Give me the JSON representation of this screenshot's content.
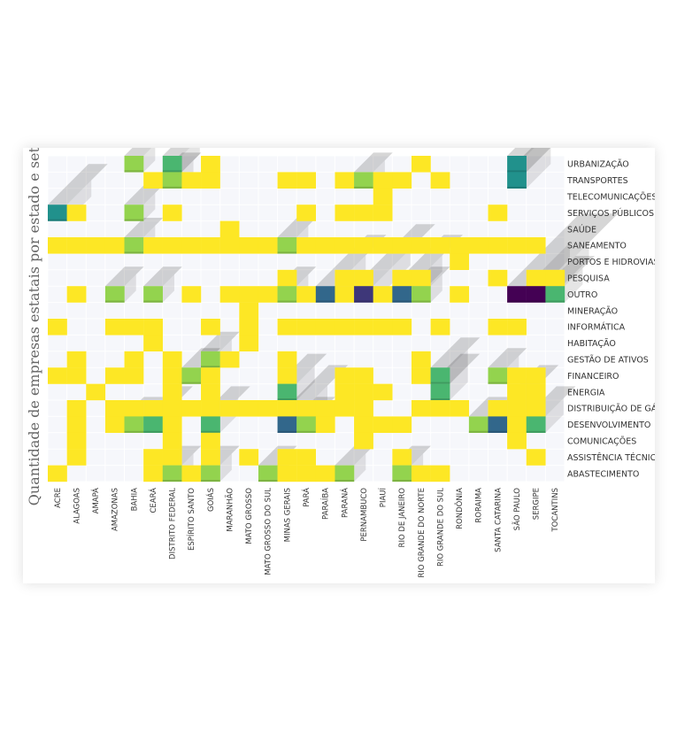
{
  "chart_data": {
    "type": "heatmap",
    "title": "",
    "ylabel": "Quantidade de empresas estatais por estado e setor",
    "xlabel": "",
    "rows": [
      "URBANIZAÇÃO",
      "TRANSPORTES",
      "TELECOMUNICAÇÕES",
      "SERVIÇOS PÚBLICOS",
      "SAÚDE",
      "SANEAMENTO",
      "PORTOS E HIDROVIAS",
      "PESQUISA",
      "OUTRO",
      "MINERAÇÃO",
      "INFORMÁTICA",
      "HABITAÇÃO",
      "GESTÃO DE ATIVOS",
      "FINANCEIRO",
      "ENERGIA",
      "DISTRIBUIÇÃO DE GÁS",
      "DESENVOLVIMENTO",
      "COMUNICAÇÕES",
      "ASSISTÊNCIA TÉCNICA",
      "ABASTECIMENTO"
    ],
    "columns": [
      "ACRE",
      "ALAGOAS",
      "AMAPÁ",
      "AMAZONAS",
      "BAHIA",
      "CEARÁ",
      "DISTRITO FEDERAL",
      "ESPÍRITO SANTO",
      "GOIÁS",
      "MARANHÃO",
      "MATO GROSSO",
      "MATO GROSSO DO SUL",
      "MINAS GERAIS",
      "PARÁ",
      "PARAÍBA",
      "PARANÁ",
      "PERNAMBUCO",
      "PIAUÍ",
      "RIO DE JANEIRO",
      "RIO GRANDE DO NORTE",
      "RIO GRANDE DO SUL",
      "RONDÔNIA",
      "RORAIMA",
      "SANTA CATARINA",
      "SÃO PAULO",
      "SERGIPE",
      "TOCANTINS"
    ],
    "colorscale": [
      "#440154",
      "#3b528b",
      "#21918c",
      "#5ec962",
      "#fde725"
    ],
    "grid": true,
    "cells": [
      [
        0,
        4,
        2
      ],
      [
        0,
        6,
        3
      ],
      [
        0,
        8,
        1
      ],
      [
        0,
        19,
        1
      ],
      [
        0,
        24,
        4
      ],
      [
        1,
        5,
        1
      ],
      [
        1,
        6,
        2
      ],
      [
        1,
        7,
        1
      ],
      [
        1,
        8,
        1
      ],
      [
        1,
        12,
        1
      ],
      [
        1,
        13,
        1
      ],
      [
        1,
        15,
        1
      ],
      [
        1,
        16,
        2
      ],
      [
        1,
        17,
        1
      ],
      [
        1,
        18,
        1
      ],
      [
        1,
        20,
        1
      ],
      [
        1,
        24,
        4
      ],
      [
        2,
        17,
        1
      ],
      [
        3,
        0,
        4
      ],
      [
        3,
        1,
        1
      ],
      [
        3,
        4,
        2
      ],
      [
        3,
        6,
        1
      ],
      [
        3,
        13,
        1
      ],
      [
        3,
        15,
        1
      ],
      [
        3,
        16,
        1
      ],
      [
        3,
        17,
        1
      ],
      [
        3,
        23,
        1
      ],
      [
        4,
        9,
        1
      ],
      [
        5,
        0,
        1
      ],
      [
        5,
        1,
        1
      ],
      [
        5,
        2,
        1
      ],
      [
        5,
        3,
        1
      ],
      [
        5,
        4,
        2
      ],
      [
        5,
        5,
        1
      ],
      [
        5,
        6,
        1
      ],
      [
        5,
        7,
        1
      ],
      [
        5,
        8,
        1
      ],
      [
        5,
        9,
        1
      ],
      [
        5,
        10,
        1
      ],
      [
        5,
        11,
        1
      ],
      [
        5,
        12,
        2
      ],
      [
        5,
        13,
        1
      ],
      [
        5,
        14,
        1
      ],
      [
        5,
        15,
        1
      ],
      [
        5,
        16,
        1
      ],
      [
        5,
        17,
        1
      ],
      [
        5,
        18,
        1
      ],
      [
        5,
        19,
        1
      ],
      [
        5,
        20,
        1
      ],
      [
        5,
        21,
        1
      ],
      [
        5,
        22,
        1
      ],
      [
        5,
        23,
        1
      ],
      [
        5,
        24,
        1
      ],
      [
        5,
        25,
        1
      ],
      [
        6,
        21,
        1
      ],
      [
        7,
        12,
        1
      ],
      [
        7,
        15,
        1
      ],
      [
        7,
        16,
        1
      ],
      [
        7,
        18,
        1
      ],
      [
        7,
        19,
        1
      ],
      [
        7,
        23,
        1
      ],
      [
        7,
        25,
        1
      ],
      [
        7,
        26,
        1
      ],
      [
        8,
        1,
        1
      ],
      [
        8,
        3,
        2
      ],
      [
        8,
        5,
        2
      ],
      [
        8,
        7,
        1
      ],
      [
        8,
        9,
        1
      ],
      [
        8,
        10,
        1
      ],
      [
        8,
        11,
        1
      ],
      [
        8,
        12,
        2
      ],
      [
        8,
        13,
        1
      ],
      [
        8,
        14,
        5
      ],
      [
        8,
        15,
        1
      ],
      [
        8,
        16,
        6
      ],
      [
        8,
        17,
        1
      ],
      [
        8,
        18,
        5
      ],
      [
        8,
        19,
        2
      ],
      [
        8,
        21,
        1
      ],
      [
        8,
        24,
        7
      ],
      [
        8,
        25,
        7
      ],
      [
        8,
        26,
        3
      ],
      [
        9,
        10,
        1
      ],
      [
        10,
        0,
        1
      ],
      [
        10,
        3,
        1
      ],
      [
        10,
        4,
        1
      ],
      [
        10,
        5,
        1
      ],
      [
        10,
        8,
        1
      ],
      [
        10,
        10,
        1
      ],
      [
        10,
        12,
        1
      ],
      [
        10,
        13,
        1
      ],
      [
        10,
        14,
        1
      ],
      [
        10,
        15,
        1
      ],
      [
        10,
        16,
        1
      ],
      [
        10,
        17,
        1
      ],
      [
        10,
        18,
        1
      ],
      [
        10,
        20,
        1
      ],
      [
        10,
        23,
        1
      ],
      [
        10,
        24,
        1
      ],
      [
        11,
        5,
        1
      ],
      [
        11,
        10,
        1
      ],
      [
        12,
        1,
        1
      ],
      [
        12,
        4,
        1
      ],
      [
        12,
        6,
        1
      ],
      [
        12,
        8,
        2
      ],
      [
        12,
        9,
        1
      ],
      [
        12,
        12,
        1
      ],
      [
        12,
        19,
        1
      ],
      [
        13,
        0,
        1
      ],
      [
        13,
        1,
        1
      ],
      [
        13,
        3,
        1
      ],
      [
        13,
        4,
        1
      ],
      [
        13,
        6,
        1
      ],
      [
        13,
        7,
        2
      ],
      [
        13,
        8,
        1
      ],
      [
        13,
        12,
        1
      ],
      [
        13,
        15,
        1
      ],
      [
        13,
        16,
        1
      ],
      [
        13,
        19,
        1
      ],
      [
        13,
        20,
        3
      ],
      [
        13,
        23,
        2
      ],
      [
        13,
        24,
        1
      ],
      [
        13,
        25,
        1
      ],
      [
        14,
        2,
        1
      ],
      [
        14,
        6,
        1
      ],
      [
        14,
        8,
        1
      ],
      [
        14,
        12,
        3
      ],
      [
        14,
        15,
        1
      ],
      [
        14,
        16,
        1
      ],
      [
        14,
        17,
        1
      ],
      [
        14,
        20,
        3
      ],
      [
        14,
        24,
        1
      ],
      [
        14,
        25,
        1
      ],
      [
        15,
        1,
        1
      ],
      [
        15,
        3,
        1
      ],
      [
        15,
        4,
        1
      ],
      [
        15,
        5,
        1
      ],
      [
        15,
        6,
        1
      ],
      [
        15,
        7,
        1
      ],
      [
        15,
        8,
        1
      ],
      [
        15,
        9,
        1
      ],
      [
        15,
        10,
        1
      ],
      [
        15,
        11,
        1
      ],
      [
        15,
        12,
        1
      ],
      [
        15,
        13,
        1
      ],
      [
        15,
        14,
        1
      ],
      [
        15,
        15,
        1
      ],
      [
        15,
        16,
        1
      ],
      [
        15,
        19,
        1
      ],
      [
        15,
        20,
        1
      ],
      [
        15,
        21,
        1
      ],
      [
        15,
        23,
        1
      ],
      [
        15,
        24,
        1
      ],
      [
        15,
        25,
        1
      ],
      [
        16,
        1,
        1
      ],
      [
        16,
        3,
        1
      ],
      [
        16,
        4,
        2
      ],
      [
        16,
        5,
        3
      ],
      [
        16,
        6,
        1
      ],
      [
        16,
        8,
        3
      ],
      [
        16,
        12,
        5
      ],
      [
        16,
        13,
        2
      ],
      [
        16,
        14,
        1
      ],
      [
        16,
        16,
        1
      ],
      [
        16,
        17,
        1
      ],
      [
        16,
        18,
        1
      ],
      [
        16,
        22,
        2
      ],
      [
        16,
        23,
        5
      ],
      [
        16,
        24,
        1
      ],
      [
        16,
        25,
        3
      ],
      [
        17,
        1,
        1
      ],
      [
        17,
        6,
        1
      ],
      [
        17,
        8,
        1
      ],
      [
        17,
        16,
        1
      ],
      [
        17,
        24,
        1
      ],
      [
        18,
        1,
        1
      ],
      [
        18,
        5,
        1
      ],
      [
        18,
        6,
        1
      ],
      [
        18,
        8,
        1
      ],
      [
        18,
        10,
        1
      ],
      [
        18,
        12,
        1
      ],
      [
        18,
        13,
        1
      ],
      [
        18,
        18,
        1
      ],
      [
        18,
        25,
        1
      ],
      [
        19,
        0,
        1
      ],
      [
        19,
        5,
        1
      ],
      [
        19,
        6,
        2
      ],
      [
        19,
        7,
        1
      ],
      [
        19,
        8,
        2
      ],
      [
        19,
        11,
        2
      ],
      [
        19,
        12,
        1
      ],
      [
        19,
        13,
        1
      ],
      [
        19,
        14,
        1
      ],
      [
        19,
        15,
        2
      ],
      [
        19,
        18,
        2
      ],
      [
        19,
        19,
        1
      ],
      [
        19,
        20,
        1
      ]
    ]
  }
}
